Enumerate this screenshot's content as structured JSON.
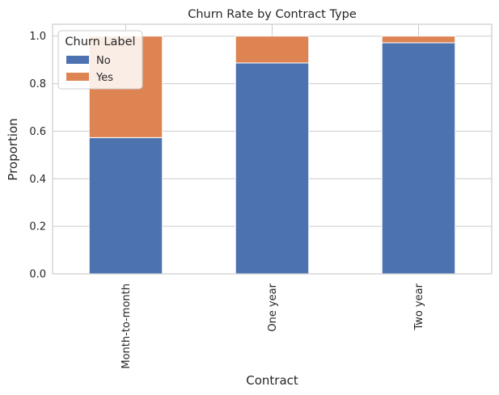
{
  "chart_data": {
    "type": "bar",
    "stacked": true,
    "title": "Churn Rate by Contract Type",
    "xlabel": "Contract",
    "ylabel": "Proportion",
    "categories": [
      "Month-to-month",
      "One year",
      "Two year"
    ],
    "series": [
      {
        "name": "No",
        "values": [
          0.573,
          0.887,
          0.972
        ],
        "color": "#4c72b0"
      },
      {
        "name": "Yes",
        "values": [
          0.427,
          0.113,
          0.028
        ],
        "color": "#dd8452"
      }
    ],
    "ylim": [
      0,
      1.05
    ],
    "yticks": [
      "0.0",
      "0.2",
      "0.4",
      "0.6",
      "0.8",
      "1.0"
    ],
    "grid": true,
    "legend": {
      "title": "Churn Label",
      "position": "top-left"
    }
  }
}
